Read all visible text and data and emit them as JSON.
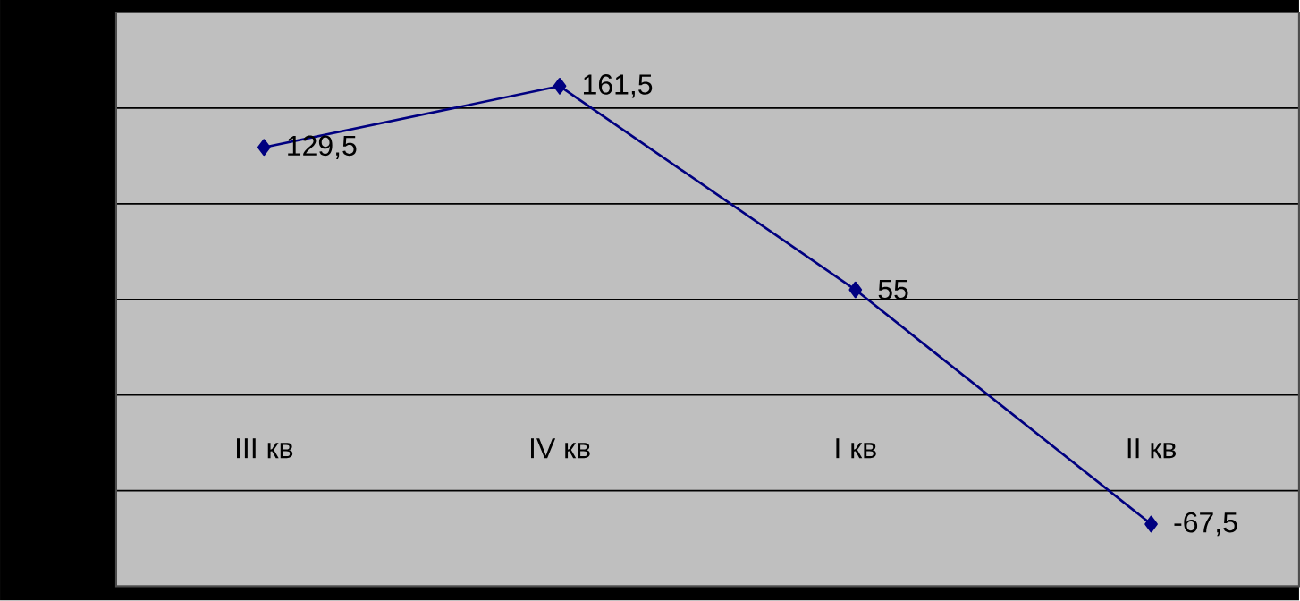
{
  "chart_data": {
    "type": "line",
    "categories": [
      "III кв",
      "IV кв",
      "I кв",
      "II кв"
    ],
    "series": [
      {
        "color": "#000080",
        "values": [
          129.5,
          161.5,
          55,
          -67.5
        ],
        "value_labels": [
          "129,5",
          "161,5",
          "55",
          "-67,5"
        ]
      }
    ],
    "ylim": [
      -100,
      200
    ],
    "yticks": [
      {
        "value": -100,
        "label": null
      },
      {
        "value": -50,
        "label": null
      },
      {
        "value": 0,
        "label": null
      },
      {
        "value": 50,
        "label": null
      },
      {
        "value": 100,
        "label": null
      },
      {
        "value": 150,
        "label": null
      },
      {
        "value": 200,
        "label": null
      }
    ],
    "grid": "y",
    "marker": "diamond",
    "tick_labels": "x"
  }
}
